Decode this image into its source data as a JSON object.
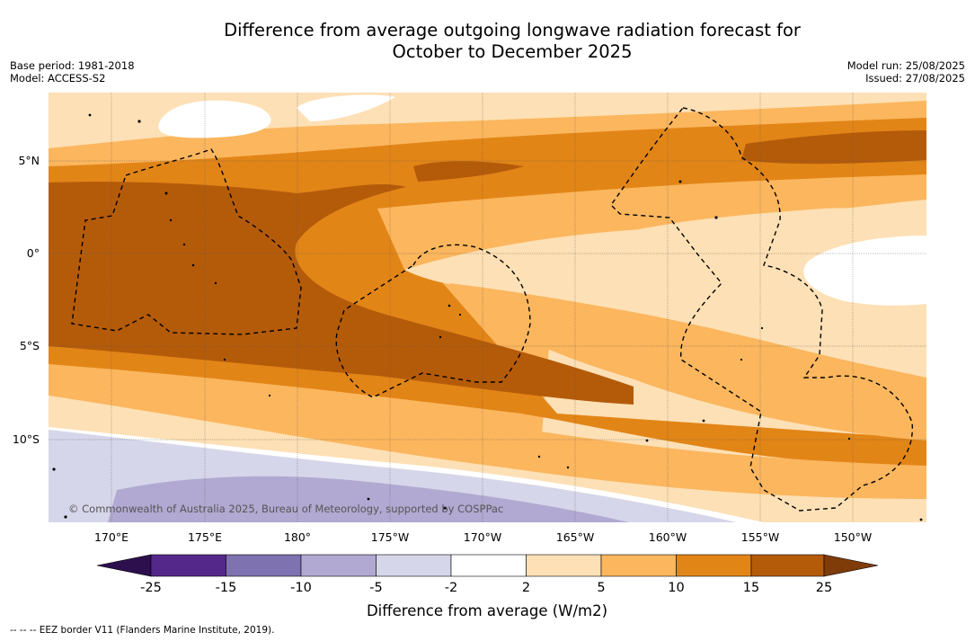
{
  "title": {
    "line1": "Difference from average outgoing longwave radiation forecast for",
    "line2": "October to December 2025"
  },
  "meta_left": {
    "base_period": "Base period: 1981-2018",
    "model": "Model: ACCESS-S2"
  },
  "meta_right": {
    "model_run": "Model run: 25/08/2025",
    "issued": "Issued: 27/08/2025"
  },
  "map": {
    "lat_labels": [
      "5°N",
      "0°",
      "5°S",
      "10°S"
    ],
    "lon_labels": [
      "170°E",
      "175°E",
      "180°",
      "175°W",
      "170°W",
      "165°W",
      "160°W",
      "155°W",
      "150°W"
    ],
    "attribution": "© Commonwealth of Australia 2025, Bureau of Meteorology, supported by COSPPac"
  },
  "colorbar": {
    "tick_labels": [
      "-25",
      "-15",
      "-10",
      "-5",
      "-2",
      "2",
      "5",
      "10",
      "15",
      "25"
    ],
    "label": "Difference from average (W/m2)",
    "colors": {
      "below": "#2d0f4e",
      "n25": "#54288a",
      "n15": "#7f72b0",
      "n10": "#b1a9d1",
      "n5": "#d6d6ea",
      "neutral": "#ffffff",
      "p2": "#fde0b5",
      "p5": "#fbb65e",
      "p10": "#e28517",
      "p15": "#b45b0a",
      "above": "#7f3b08"
    }
  },
  "footer": {
    "eez_legend": "--  --  -- EEZ border V11 (Flanders Marine Institute, 2019)."
  }
}
